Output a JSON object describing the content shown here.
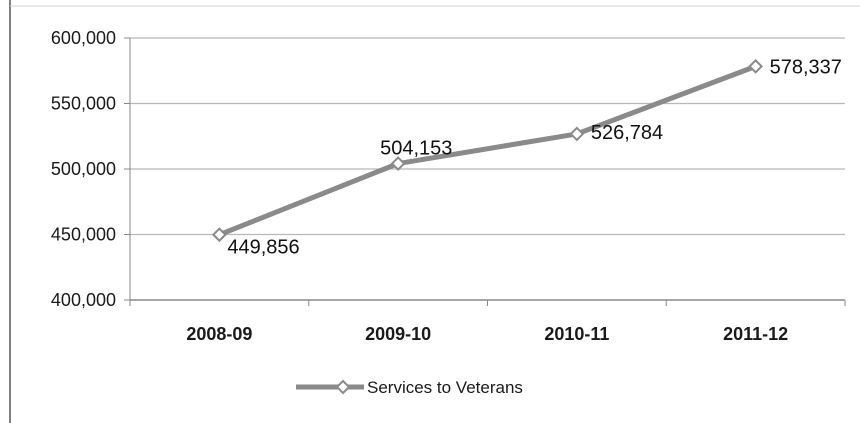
{
  "chart_data": {
    "type": "line",
    "categories": [
      "2008-09",
      "2009-10",
      "2010-11",
      "2011-12"
    ],
    "series": [
      {
        "name": "Services to Veterans",
        "values": [
          449856,
          504153,
          526784,
          578337
        ]
      }
    ],
    "data_labels": [
      "449,856",
      "504,153",
      "526,784",
      "578,337"
    ],
    "y_ticks": [
      "400,000",
      "450,000",
      "500,000",
      "550,000",
      "600,000"
    ],
    "ylim": [
      400000,
      600000
    ],
    "grid": true,
    "legend_position": "bottom",
    "colors": {
      "line": "#8a8a8a",
      "marker_fill": "#ffffff",
      "grid": "#b8b8b8",
      "axis": "#888888"
    }
  }
}
